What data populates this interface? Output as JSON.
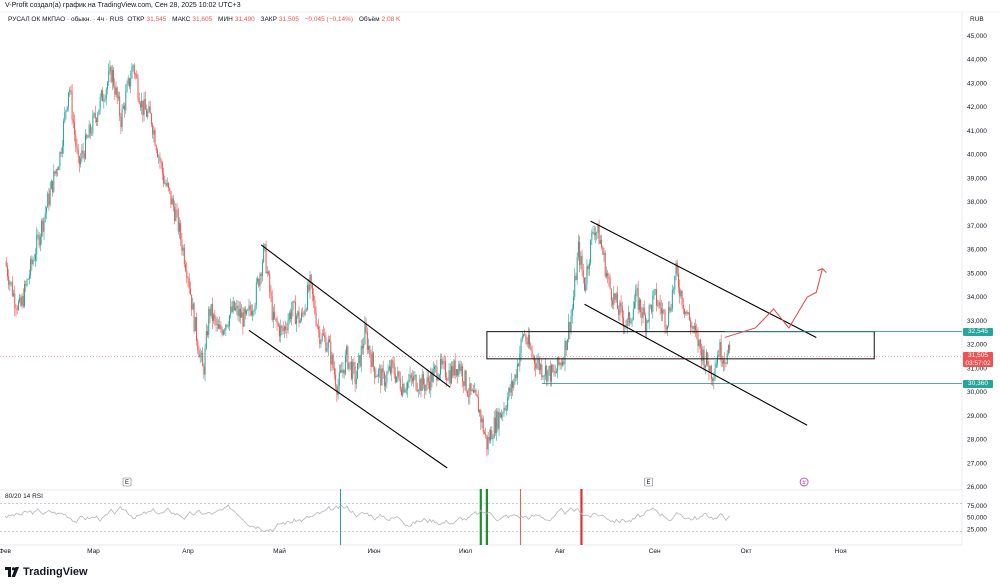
{
  "credit": "V-Profit создал(а) график на TradingView.com, Сен 28, 2025 10:02 UTC+3",
  "symbol": {
    "name": "РУСАЛ ОК МКПАО · обыкн. · 4ч · RUS",
    "open_label": "ОТКР",
    "open": "31,545",
    "high_label": "МАКС",
    "high": "31,605",
    "low_label": "МИН",
    "low": "31,490",
    "close_label": "ЗАКР",
    "close": "31,505",
    "change": "−0,045 (−0,14%)",
    "volume_label": "Объём",
    "volume": "2,08 K"
  },
  "currency": "RUB",
  "price_tags": {
    "upper_level": "32,545",
    "current_price": "31,505",
    "countdown": "03:57:02",
    "lower_level": "30,360"
  },
  "event_markers": [
    "E",
    "E"
  ],
  "dividend_marker": "#",
  "logo_text": "TradingView",
  "colors": {
    "up": "#26a69a",
    "down": "#ef5350",
    "trendline": "#000000",
    "level": "#1e8c7e",
    "rsi_line": "#b2b5be",
    "arrow": "#e0454a"
  },
  "chart_data": {
    "type": "candlestick",
    "title": "РУСАЛ ОК МКПАО · 4ч",
    "y_axis": {
      "min": 26,
      "max": 45.5,
      "ticks": [
        "45,000",
        "44,000",
        "43,000",
        "42,000",
        "41,000",
        "40,000",
        "39,000",
        "38,000",
        "37,000",
        "36,000",
        "35,000",
        "34,000",
        "33,000",
        "32,000",
        "31,000",
        "30,000",
        "29,000",
        "28,000",
        "27,000",
        "26,000"
      ]
    },
    "x_axis": {
      "range": [
        0,
        300
      ],
      "month_labels": [
        {
          "label": "Фев",
          "t": 0
        },
        {
          "label": "Мар",
          "t": 29
        },
        {
          "label": "Апр",
          "t": 60
        },
        {
          "label": "Май",
          "t": 90
        },
        {
          "label": "Июн",
          "t": 121
        },
        {
          "label": "Июл",
          "t": 151
        },
        {
          "label": "Авг",
          "t": 182
        },
        {
          "label": "Сен",
          "t": 213
        },
        {
          "label": "Окт",
          "t": 243
        },
        {
          "label": "Ноя",
          "t": 274
        }
      ]
    },
    "price_path": [
      [
        0,
        35.5
      ],
      [
        3,
        34.0
      ],
      [
        5,
        33.5
      ],
      [
        10,
        36.0
      ],
      [
        15,
        38.5
      ],
      [
        18,
        40.0
      ],
      [
        21,
        43.0
      ],
      [
        24,
        39.5
      ],
      [
        28,
        41.0
      ],
      [
        32,
        42.5
      ],
      [
        35,
        43.5
      ],
      [
        38,
        41.5
      ],
      [
        42,
        43.8
      ],
      [
        45,
        42.0
      ],
      [
        48,
        41.5
      ],
      [
        52,
        39.0
      ],
      [
        56,
        37.5
      ],
      [
        60,
        35.0
      ],
      [
        62,
        33.0
      ],
      [
        65,
        30.8
      ],
      [
        67,
        33.5
      ],
      [
        70,
        32.5
      ],
      [
        75,
        33.5
      ],
      [
        79,
        33.0
      ],
      [
        82,
        34.0
      ],
      [
        85,
        36.0
      ],
      [
        88,
        33.0
      ],
      [
        91,
        32.5
      ],
      [
        94,
        33.5
      ],
      [
        97,
        33.0
      ],
      [
        100,
        34.5
      ],
      [
        103,
        32.5
      ],
      [
        106,
        32.0
      ],
      [
        109,
        30.2
      ],
      [
        112,
        31.5
      ],
      [
        115,
        30.5
      ],
      [
        118,
        32.5
      ],
      [
        121,
        31.0
      ],
      [
        124,
        30.5
      ],
      [
        127,
        31.0
      ],
      [
        130,
        30.3
      ],
      [
        134,
        30.5
      ],
      [
        138,
        30.3
      ],
      [
        142,
        31.0
      ],
      [
        146,
        30.8
      ],
      [
        149,
        31.2
      ],
      [
        152,
        30.0
      ],
      [
        155,
        29.5
      ],
      [
        158,
        27.8
      ],
      [
        160,
        28.5
      ],
      [
        164,
        29.5
      ],
      [
        167,
        30.5
      ],
      [
        170,
        32.5
      ],
      [
        173,
        31.5
      ],
      [
        176,
        31.0
      ],
      [
        180,
        30.7
      ],
      [
        183,
        31.5
      ],
      [
        186,
        33.5
      ],
      [
        188,
        36.0
      ],
      [
        190,
        34.5
      ],
      [
        193,
        37.0
      ],
      [
        195,
        36.5
      ],
      [
        198,
        34.5
      ],
      [
        201,
        33.5
      ],
      [
        204,
        32.8
      ],
      [
        207,
        34.0
      ],
      [
        210,
        33.0
      ],
      [
        213,
        34.0
      ],
      [
        217,
        33.0
      ],
      [
        220,
        35.0
      ],
      [
        223,
        33.5
      ],
      [
        226,
        32.5
      ],
      [
        229,
        31.5
      ],
      [
        232,
        30.8
      ],
      [
        234,
        31.8
      ],
      [
        236,
        31.5
      ],
      [
        238,
        31.6
      ]
    ],
    "channels": [
      {
        "from": [
          84,
          36.2
        ],
        "to": [
          146,
          30.2
        ]
      },
      {
        "from": [
          80,
          32.6
        ],
        "to": [
          145,
          26.8
        ]
      },
      {
        "from": [
          192,
          37.2
        ],
        "to": [
          266,
          32.3
        ]
      },
      {
        "from": [
          190,
          33.7
        ],
        "to": [
          263,
          28.6
        ]
      }
    ],
    "zone": {
      "from_t": 158,
      "to_t": 285,
      "top": 32.545,
      "bottom": 31.4
    },
    "support_level": {
      "from_t": 176,
      "to_t": 285,
      "value": 30.36
    },
    "current_price_level": 31.505,
    "projection": [
      [
        236,
        32.3
      ],
      [
        246,
        32.7
      ],
      [
        252,
        33.5
      ],
      [
        257,
        32.7
      ],
      [
        263,
        34.0
      ],
      [
        266,
        34.2
      ],
      [
        268,
        35.2
      ]
    ],
    "rsi": {
      "label": "80/20 14 RSI",
      "ticks": [
        "75,000",
        "50,000",
        "25,000"
      ],
      "bands": [
        80,
        20
      ],
      "signals": [
        {
          "t": 110,
          "color": "#26a69a"
        },
        {
          "t": 156,
          "color": "#1b8f2e"
        },
        {
          "t": 158,
          "color": "#1b8f2e"
        },
        {
          "t": 169,
          "color": "#ef5350"
        },
        {
          "t": 189,
          "color": "#e03131"
        }
      ]
    }
  }
}
